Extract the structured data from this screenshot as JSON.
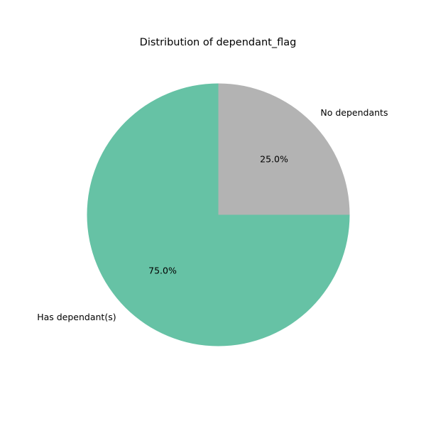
{
  "chart_data": {
    "type": "pie",
    "title": "Distribution of dependant_flag",
    "slices": [
      {
        "label": "No dependants",
        "value": 25.0,
        "pct_label": "25.0%",
        "color": "#b3b3b3"
      },
      {
        "label": "Has dependant(s)",
        "value": 75.0,
        "pct_label": "75.0%",
        "color": "#66c2a5"
      }
    ],
    "start_angle_deg": 90,
    "direction": "clockwise",
    "legend": "none"
  }
}
